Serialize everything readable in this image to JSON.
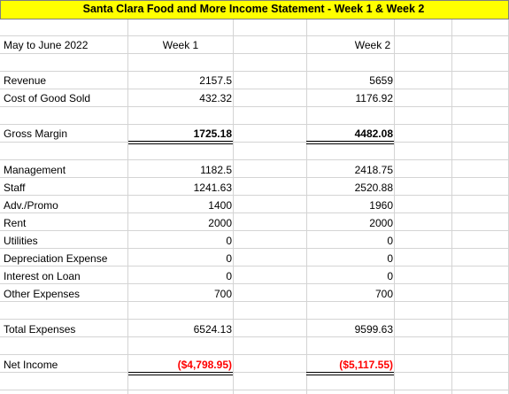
{
  "title": "Santa Clara Food and More Income Statement - Week 1 & Week 2",
  "period_label": "May to June 2022",
  "columns": [
    "Week 1",
    "Week 2"
  ],
  "rows": {
    "revenue": {
      "label": "Revenue",
      "w1": "2157.5",
      "w2": "5659"
    },
    "cogs": {
      "label": "Cost  of Good Sold",
      "w1": "432.32",
      "w2": "1176.92"
    },
    "gross_margin": {
      "label": "Gross Margin",
      "w1": "1725.18",
      "w2": "4482.08"
    },
    "management": {
      "label": "Management",
      "w1": "1182.5",
      "w2": "2418.75"
    },
    "staff": {
      "label": "Staff",
      "w1": "1241.63",
      "w2": "2520.88"
    },
    "adv": {
      "label": "Adv./Promo",
      "w1": "1400",
      "w2": "1960"
    },
    "rent": {
      "label": "Rent",
      "w1": "2000",
      "w2": "2000"
    },
    "utilities": {
      "label": "Utilities",
      "w1": "0",
      "w2": "0"
    },
    "depreciation": {
      "label": "Depreciation Expense",
      "w1": "0",
      "w2": "0"
    },
    "interest": {
      "label": "Interest on Loan",
      "w1": "0",
      "w2": "0"
    },
    "other": {
      "label": "Other Expenses",
      "w1": "700",
      "w2": "700"
    },
    "total_expenses": {
      "label": "Total Expenses",
      "w1": "6524.13",
      "w2": "9599.63"
    },
    "net_income": {
      "label": "Net Income",
      "w1": "($4,798.95)",
      "w2": "($5,117.55)"
    }
  },
  "colors": {
    "title_fill": "#ffff00",
    "negative": "#ff0000",
    "gridline": "#d4d4d4"
  }
}
